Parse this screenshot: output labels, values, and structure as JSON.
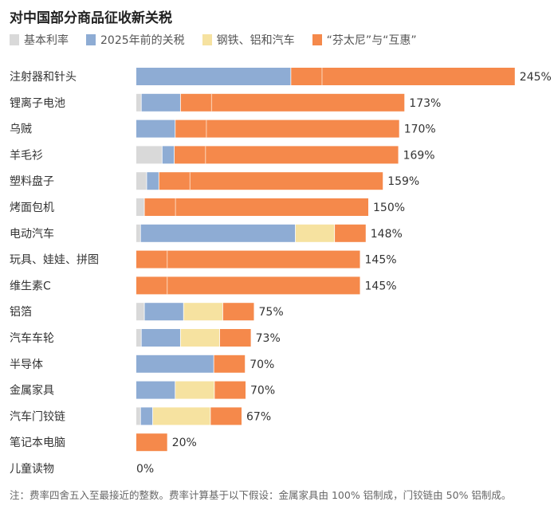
{
  "chart_data": {
    "type": "bar",
    "orientation": "horizontal",
    "stacked": true,
    "title": "对中国部分商品征收新关税",
    "legend_position": "top-left",
    "grid": false,
    "xlim": [
      0,
      245
    ],
    "series_meta": [
      {
        "name": "基本利率",
        "color": "#d9d9d9"
      },
      {
        "name": "2025年前的关税",
        "color": "#8eacd4"
      },
      {
        "name": "钢铁、铝和汽车",
        "color": "#f6e2a0"
      },
      {
        "name": "“芬太尼”与“互惠”",
        "color": "#f5894b"
      }
    ],
    "categories": [
      "注射器和针头",
      "锂离子电池",
      "乌贼",
      "羊毛衫",
      "塑料盘子",
      "烤面包机",
      "电动汽车",
      "玩具、娃娃、拼图",
      "维生素C",
      "铝箔",
      "汽车车轮",
      "半导体",
      "金属家具",
      "汽车门铰链",
      "笔记本电脑",
      "儿童读物"
    ],
    "series": [
      {
        "name": "基本利率",
        "values": [
          0,
          3,
          0,
          16.5,
          6.5,
          5,
          2.5,
          0,
          0,
          5,
          3,
          0,
          0,
          2.5,
          0,
          0
        ]
      },
      {
        "name": "2025年前的关税",
        "values": [
          100,
          25,
          25,
          7.5,
          7.5,
          0,
          100,
          0,
          0,
          25,
          25,
          50,
          25,
          7.5,
          0,
          0
        ]
      },
      {
        "name": "钢铁、铝和汽车",
        "values": [
          0,
          0,
          0,
          0,
          0,
          0,
          25,
          0,
          0,
          25,
          25,
          0,
          25,
          37,
          0,
          0
        ]
      },
      {
        "name": "“芬太尼”与“互惠”",
        "values": [
          145,
          145,
          145,
          145,
          145,
          145,
          20,
          145,
          145,
          20,
          20,
          20,
          20,
          20,
          20,
          0
        ]
      }
    ],
    "total_labels": [
      "245%",
      "173%",
      "170%",
      "169%",
      "159%",
      "150%",
      "148%",
      "145%",
      "145%",
      "75%",
      "73%",
      "70%",
      "70%",
      "67%",
      "20%",
      "0%"
    ],
    "note": "注：费率四舍五入至最接近的整数。费率计算基于以下假设：金属家具由 100% 铝制成，门铰链由 50% 铝制成。"
  }
}
